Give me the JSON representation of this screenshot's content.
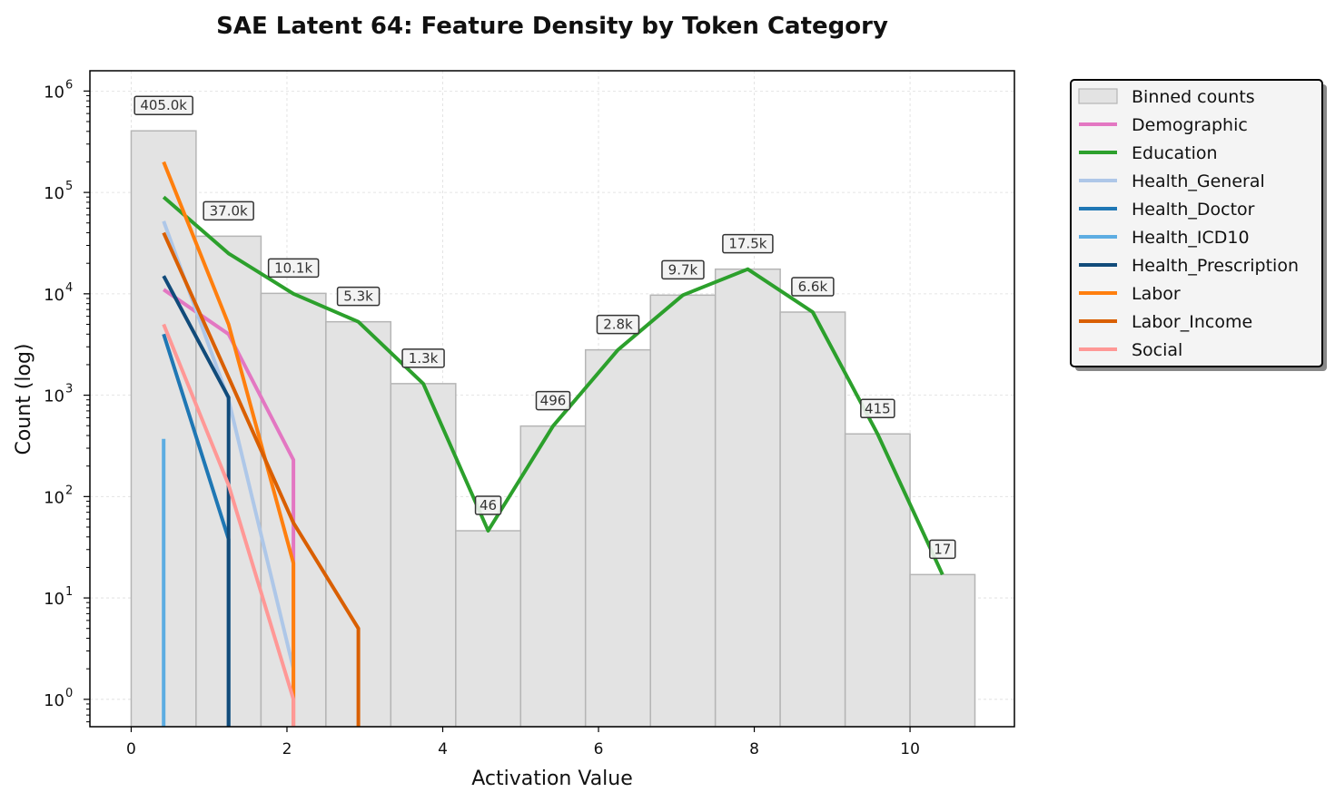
{
  "chart_data": {
    "type": "bar",
    "title": "SAE Latent 64: Feature Density by Token Category",
    "xlabel": "Activation Value",
    "ylabel": "Count (log)",
    "xlim": [
      -0.53,
      11.34
    ],
    "ylim_log10": [
      -0.27,
      6.2
    ],
    "y_scale": "log",
    "grid": true,
    "legend_position": "outside-right",
    "x_ticks": [
      "0",
      "2",
      "4",
      "6",
      "8",
      "10"
    ],
    "x_tick_values": [
      0,
      2,
      4,
      6,
      8,
      10
    ],
    "y_tick_exponents": [
      "0",
      "1",
      "2",
      "3",
      "4",
      "5",
      "6"
    ],
    "y_tick_base": "10",
    "bins": {
      "name": "Binned counts",
      "edges": [
        0,
        0.833,
        1.667,
        2.5,
        3.333,
        4.167,
        5.0,
        5.833,
        6.667,
        7.5,
        8.333,
        9.167,
        10.0,
        10.833
      ],
      "values": [
        405000,
        37000,
        10100,
        5300,
        1300,
        46,
        496,
        2800,
        9700,
        17500,
        6600,
        415,
        17
      ],
      "labels": [
        "405.0k",
        "37.0k",
        "10.1k",
        "5.3k",
        "1.3k",
        "46",
        "496",
        "2.8k",
        "9.7k",
        "17.5k",
        "6.6k",
        "415",
        "17"
      ],
      "color": "#e3e3e3",
      "edge_color": "#b5b5b5"
    },
    "series": [
      {
        "name": "Demographic",
        "color": "#e377c2",
        "x": [
          0.417,
          1.25,
          2.083,
          2.083
        ],
        "values": [
          11000,
          4000,
          230,
          1
        ]
      },
      {
        "name": "Education",
        "color": "#2ca02c",
        "x": [
          0.417,
          1.25,
          2.083,
          2.917,
          3.75,
          4.583,
          5.417,
          6.25,
          7.083,
          7.917,
          8.75,
          9.583,
          10.417
        ],
        "values": [
          90000,
          25000,
          10000,
          5300,
          1300,
          46,
          496,
          2800,
          9700,
          17500,
          6600,
          415,
          17
        ]
      },
      {
        "name": "Health_General",
        "color": "#aec7e8",
        "x": [
          0.417,
          1.25,
          2.083
        ],
        "values": [
          52000,
          900,
          2
        ]
      },
      {
        "name": "Health_Doctor",
        "color": "#1f77b4",
        "x": [
          0.417,
          1.25,
          1.25
        ],
        "values": [
          4000,
          38,
          0.5
        ]
      },
      {
        "name": "Health_ICD10",
        "color": "#5dade2",
        "x": [
          0.417,
          0.417
        ],
        "values": [
          370,
          0.5
        ]
      },
      {
        "name": "Health_Prescription",
        "color": "#114b7a",
        "x": [
          0.417,
          1.25,
          1.25
        ],
        "values": [
          15000,
          950,
          0.5
        ]
      },
      {
        "name": "Labor",
        "color": "#ff7f0e",
        "x": [
          0.417,
          1.25,
          2.083,
          2.083
        ],
        "values": [
          200000,
          5000,
          22,
          0.5
        ]
      },
      {
        "name": "Labor_Income",
        "color": "#d95f02",
        "x": [
          0.417,
          1.25,
          2.083,
          2.917,
          2.917
        ],
        "values": [
          40000,
          1500,
          55,
          5,
          0.5
        ]
      },
      {
        "name": "Social",
        "color": "#ff9896",
        "x": [
          0.417,
          1.25,
          2.083,
          2.083
        ],
        "values": [
          5000,
          130,
          1,
          0.5
        ]
      }
    ]
  }
}
